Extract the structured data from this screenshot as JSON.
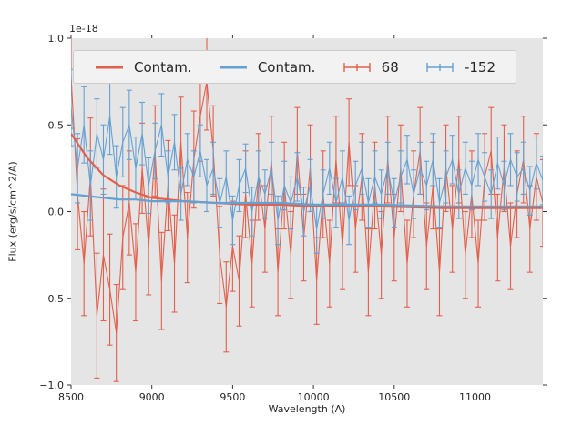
{
  "chart_data": {
    "type": "line",
    "title": "",
    "xlabel": "Wavelength (A)",
    "ylabel": "Flux (erg/s/cm^2/A)",
    "offset_text": "1e-18",
    "y_unit_factor": "1e-18",
    "xlim": [
      8500,
      11420
    ],
    "ylim": [
      -1.0,
      1.0
    ],
    "x_ticks": [
      8500,
      9000,
      9500,
      10000,
      10500,
      11000
    ],
    "y_ticks": [
      -1.0,
      -0.5,
      0.0,
      0.5,
      1.0
    ],
    "grid": false,
    "legend_position": "upper center, horizontal, 4 columns",
    "background": "#e5e5e5",
    "colors": {
      "red": "#e2604c",
      "blue": "#64a1d3",
      "tick_text": "#262626"
    },
    "x": [
      8500,
      8540,
      8580,
      8620,
      8660,
      8700,
      8740,
      8780,
      8820,
      8860,
      8900,
      8940,
      8980,
      9020,
      9060,
      9100,
      9140,
      9180,
      9220,
      9260,
      9300,
      9340,
      9380,
      9420,
      9460,
      9500,
      9540,
      9580,
      9620,
      9660,
      9700,
      9740,
      9780,
      9820,
      9860,
      9900,
      9940,
      9980,
      10020,
      10060,
      10100,
      10140,
      10180,
      10220,
      10260,
      10300,
      10340,
      10380,
      10420,
      10460,
      10500,
      10540,
      10580,
      10620,
      10660,
      10700,
      10740,
      10780,
      10820,
      10860,
      10900,
      10940,
      10980,
      11020,
      11060,
      11100,
      11140,
      11180,
      11220,
      11260,
      11300,
      11340,
      11380,
      11420
    ],
    "series": [
      {
        "name": "Contam.",
        "color": "#e2604c",
        "style": "line",
        "x": [
          8500,
          8600,
          8700,
          8800,
          8900,
          9000,
          9200,
          9400,
          9600,
          9800,
          10000,
          10400,
          10800,
          11200,
          11420
        ],
        "y": [
          0.45,
          0.31,
          0.21,
          0.15,
          0.11,
          0.08,
          0.06,
          0.05,
          0.04,
          0.04,
          0.03,
          0.03,
          0.02,
          0.02,
          0.02
        ]
      },
      {
        "name": "Contam.",
        "color": "#64a1d3",
        "style": "line",
        "x": [
          8500,
          8600,
          8700,
          8800,
          8900,
          9000,
          9200,
          9400,
          9600,
          9800,
          10000,
          10400,
          10800,
          11200,
          11420
        ],
        "y": [
          0.1,
          0.09,
          0.08,
          0.07,
          0.07,
          0.06,
          0.06,
          0.05,
          0.05,
          0.05,
          0.04,
          0.04,
          0.03,
          0.03,
          0.03
        ]
      },
      {
        "name": "68",
        "color": "#e2604c",
        "style": "errorbar",
        "y": [
          0.78,
          0.1,
          -0.3,
          0.2,
          -0.6,
          -0.25,
          -0.45,
          -0.7,
          -0.15,
          0.05,
          -0.35,
          0.25,
          -0.2,
          0.35,
          -0.4,
          0.15,
          -0.3,
          0.4,
          -0.15,
          0.3,
          0.55,
          0.75,
          0.35,
          -0.25,
          -0.55,
          -0.2,
          -0.4,
          0.1,
          -0.3,
          0.2,
          -0.1,
          0.3,
          -0.35,
          0.15,
          -0.25,
          0.35,
          -0.15,
          0.25,
          -0.4,
          0.1,
          -0.3,
          0.3,
          -0.2,
          0.4,
          -0.1,
          0.2,
          -0.35,
          0.15,
          -0.25,
          0.3,
          -0.15,
          0.25,
          -0.3,
          0.1,
          0.35,
          -0.2,
          0.15,
          -0.35,
          0.25,
          -0.1,
          0.3,
          -0.25,
          0.1,
          -0.3,
          0.2,
          0.35,
          -0.15,
          0.25,
          -0.2,
          0.1,
          0.3,
          -0.1,
          0.2,
          0.05
        ],
        "yerr": [
          0.3,
          0.32,
          0.3,
          0.34,
          0.36,
          0.38,
          0.32,
          0.28,
          0.3,
          0.3,
          0.28,
          0.26,
          0.28,
          0.26,
          0.28,
          0.26,
          0.28,
          0.26,
          0.26,
          0.28,
          0.26,
          0.28,
          0.26,
          0.28,
          0.26,
          0.26,
          0.26,
          0.25,
          0.25,
          0.25,
          0.25,
          0.25,
          0.25,
          0.25,
          0.25,
          0.25,
          0.25,
          0.25,
          0.25,
          0.25,
          0.25,
          0.25,
          0.25,
          0.25,
          0.25,
          0.25,
          0.25,
          0.25,
          0.25,
          0.25,
          0.25,
          0.25,
          0.25,
          0.25,
          0.25,
          0.25,
          0.25,
          0.25,
          0.25,
          0.25,
          0.25,
          0.25,
          0.25,
          0.25,
          0.25,
          0.25,
          0.25,
          0.25,
          0.25,
          0.25,
          0.25,
          0.25,
          0.25,
          0.25
        ]
      },
      {
        "name": "-152",
        "color": "#64a1d3",
        "style": "errorbar",
        "y": [
          0.6,
          0.25,
          0.5,
          0.15,
          0.45,
          0.3,
          0.55,
          0.2,
          0.4,
          0.5,
          0.25,
          0.45,
          0.15,
          0.35,
          0.5,
          0.2,
          0.4,
          0.1,
          0.3,
          0.2,
          0.35,
          0.15,
          0.25,
          0.05,
          0.2,
          -0.05,
          0.15,
          0.25,
          0.0,
          0.2,
          0.1,
          0.25,
          -0.05,
          0.15,
          0.05,
          0.2,
          0.0,
          0.15,
          -0.1,
          0.1,
          0.25,
          0.05,
          0.2,
          -0.05,
          0.15,
          0.25,
          0.05,
          0.2,
          0.1,
          0.25,
          0.05,
          0.2,
          0.3,
          0.1,
          0.25,
          0.15,
          0.3,
          0.05,
          0.2,
          0.3,
          0.1,
          0.25,
          0.15,
          0.3,
          0.2,
          0.1,
          0.28,
          0.15,
          0.3,
          0.2,
          0.25,
          0.12,
          0.28,
          0.18
        ],
        "yerr": [
          0.22,
          0.2,
          0.22,
          0.2,
          0.2,
          0.2,
          0.22,
          0.18,
          0.2,
          0.2,
          0.18,
          0.18,
          0.16,
          0.16,
          0.18,
          0.15,
          0.16,
          0.15,
          0.15,
          0.15,
          0.15,
          0.15,
          0.15,
          0.14,
          0.15,
          0.14,
          0.15,
          0.14,
          0.14,
          0.15,
          0.14,
          0.15,
          0.14,
          0.14,
          0.15,
          0.14,
          0.14,
          0.15,
          0.14,
          0.14,
          0.15,
          0.14,
          0.15,
          0.14,
          0.14,
          0.15,
          0.14,
          0.15,
          0.14,
          0.15,
          0.14,
          0.15,
          0.14,
          0.14,
          0.15,
          0.14,
          0.15,
          0.14,
          0.15,
          0.14,
          0.14,
          0.15,
          0.14,
          0.15,
          0.14,
          0.14,
          0.15,
          0.14,
          0.15,
          0.14,
          0.15,
          0.14,
          0.15,
          0.14
        ]
      }
    ]
  }
}
